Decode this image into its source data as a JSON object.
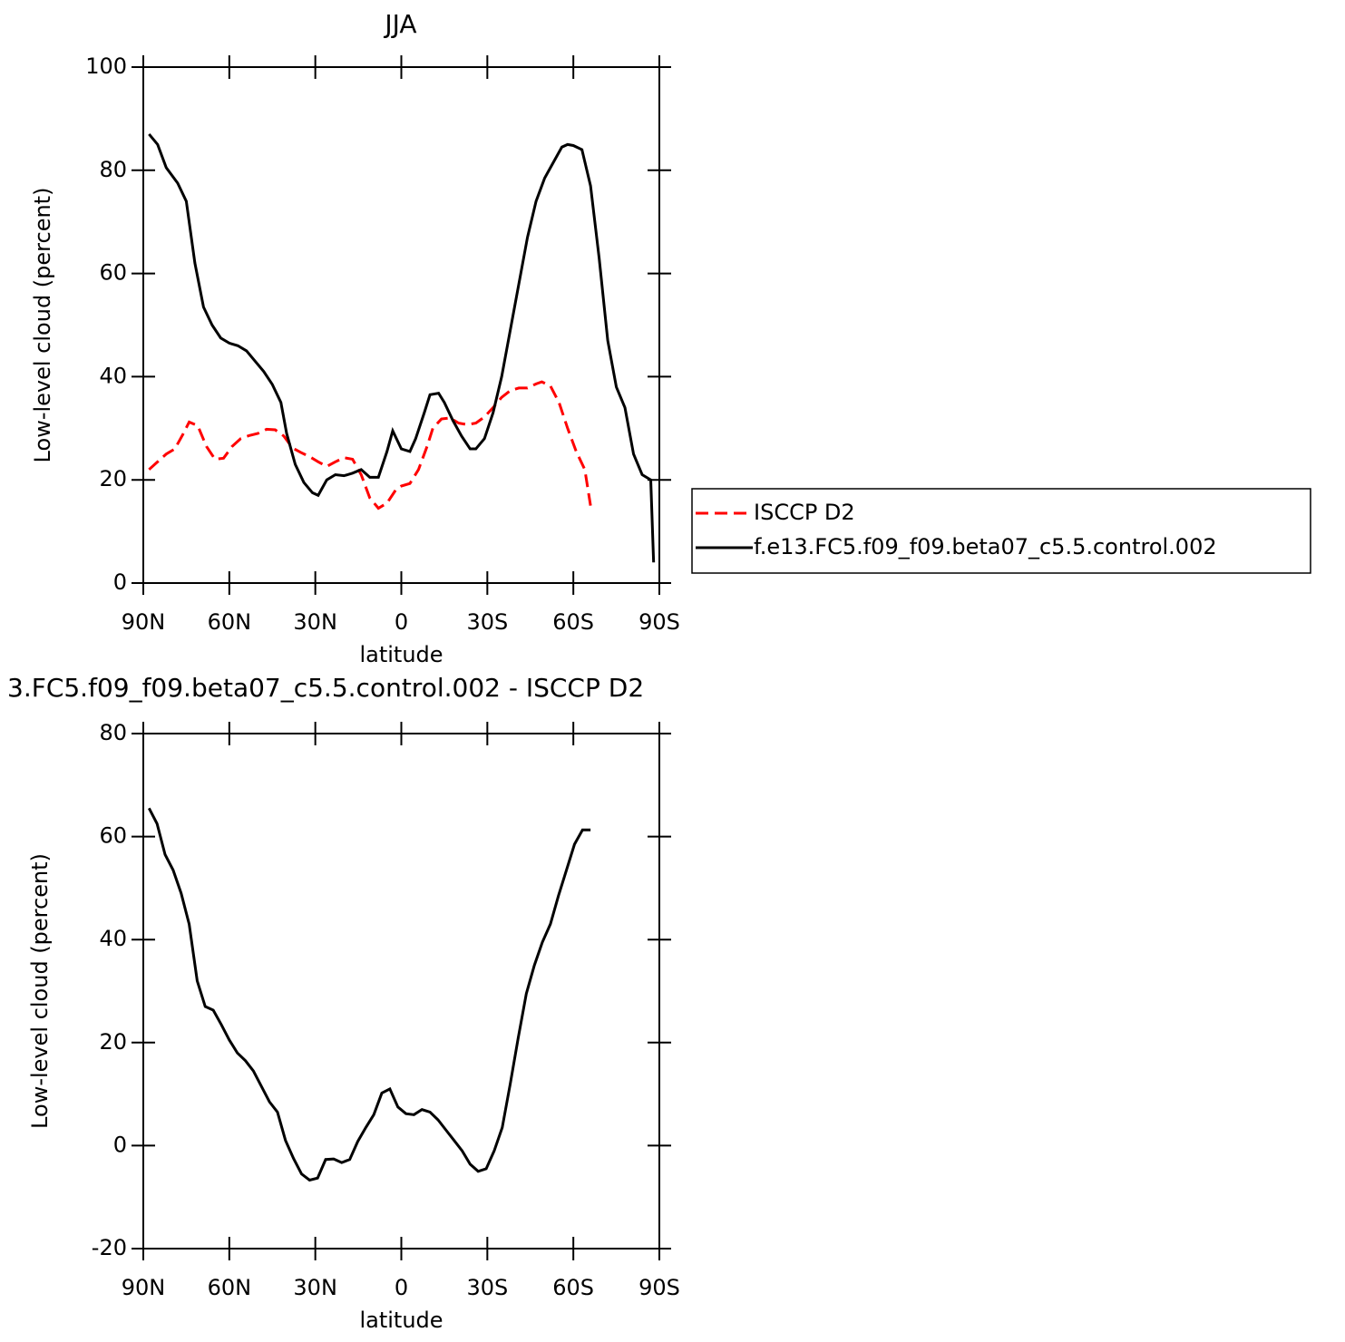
{
  "chart_data": [
    {
      "type": "line",
      "title": "JJA",
      "xlabel": "latitude",
      "ylabel": "Low-level cloud (percent)",
      "xlim": [
        90,
        -90
      ],
      "xticks": [
        {
          "value": 90,
          "label": "90N"
        },
        {
          "value": 60,
          "label": "60N"
        },
        {
          "value": 30,
          "label": "30N"
        },
        0,
        {
          "value": -30,
          "label": "30S"
        },
        {
          "value": -60,
          "label": "60S"
        },
        {
          "value": -90,
          "label": "90S"
        }
      ],
      "ylim": [
        0,
        100
      ],
      "yticks": [
        0,
        20,
        40,
        60,
        80,
        100
      ],
      "legend": "right",
      "series": [
        {
          "name": "ISCCP D2",
          "color": "#ff0000",
          "line_style": "dashed",
          "x": [
            88,
            85,
            82,
            79,
            76,
            74,
            71,
            68,
            65,
            62,
            59,
            56,
            53,
            50,
            47,
            44,
            41,
            38,
            35,
            32,
            29,
            26,
            23,
            20,
            17,
            14,
            11,
            8,
            5,
            2,
            0,
            -3,
            -6,
            -9,
            -11,
            -14,
            -17,
            -20,
            -23,
            -26,
            -29,
            -32,
            -35,
            -38,
            -41,
            -44,
            -47,
            -49,
            -52,
            -55,
            -58,
            -61,
            -64,
            -66
          ],
          "values": [
            22,
            23.5,
            25,
            26,
            29,
            31.2,
            30.5,
            26.5,
            24,
            24.2,
            26.5,
            28,
            28.6,
            29,
            29.8,
            29.7,
            28.5,
            26.2,
            25.3,
            24.5,
            23.5,
            22.6,
            23.5,
            24.3,
            24,
            21,
            16.5,
            14.5,
            15.5,
            18,
            18.8,
            19.3,
            22,
            26.5,
            30,
            31.8,
            32,
            31,
            30.7,
            31,
            32.2,
            34,
            36,
            37.3,
            37.8,
            37.8,
            38.6,
            39,
            38.2,
            35,
            30,
            25.5,
            22,
            15
          ]
        },
        {
          "name": "f.e13.FC5.f09_f09.beta07_c5.5.control.002",
          "color": "#000000",
          "line_style": "solid",
          "x": [
            88,
            85,
            82,
            78,
            75,
            72,
            69,
            66,
            63,
            60,
            57,
            54,
            51,
            48,
            45,
            42,
            40,
            37,
            34,
            31,
            29,
            26,
            23,
            20,
            17,
            14,
            11,
            8,
            5,
            3,
            0,
            -3,
            -5,
            -8,
            -10,
            -13,
            -15,
            -18,
            -21,
            -24,
            -26,
            -29,
            -32,
            -35,
            -38,
            -41,
            -44,
            -47,
            -50,
            -53,
            -56,
            -58,
            -60,
            -63,
            -66,
            -69,
            -72,
            -75,
            -78,
            -81,
            -84,
            -87,
            -88
          ],
          "values": [
            87,
            85,
            80.5,
            77.5,
            74,
            62,
            53.5,
            50,
            47.5,
            46.5,
            46,
            45,
            43,
            41,
            38.5,
            35,
            29,
            23,
            19.5,
            17.5,
            17,
            20,
            21,
            20.8,
            21.3,
            22,
            20.5,
            20.5,
            25.5,
            29.5,
            26,
            25.5,
            28,
            33,
            36.5,
            36.8,
            35,
            31.5,
            28.5,
            26,
            26,
            28,
            33,
            40,
            49,
            58,
            67,
            74,
            78.5,
            81.5,
            84.5,
            85,
            84.8,
            84,
            77,
            63,
            47,
            38,
            34,
            25,
            21,
            20,
            4
          ]
        }
      ]
    },
    {
      "type": "line",
      "title": "3.FC5.f09_f09.beta07_c5.5.control.002 - ISCCP D2",
      "xlabel": "latitude",
      "ylabel": "Low-level cloud (percent)",
      "xlim": [
        90,
        -90
      ],
      "xticks": [
        {
          "value": 90,
          "label": "90N"
        },
        {
          "value": 60,
          "label": "60N"
        },
        {
          "value": 30,
          "label": "30N"
        },
        0,
        {
          "value": -30,
          "label": "30S"
        },
        {
          "value": -60,
          "label": "60S"
        },
        {
          "value": -90,
          "label": "90S"
        }
      ],
      "ylim": [
        -20,
        80
      ],
      "yticks": [
        -20,
        0,
        20,
        40,
        60,
        80
      ],
      "series": [
        {
          "color": "#000000",
          "line_style": "solid",
          "x": [
            88,
            85.2,
            82.4,
            79.6,
            76.8,
            74,
            71.2,
            68.4,
            65.6,
            62.8,
            60,
            57.2,
            54.4,
            51.6,
            48.8,
            46,
            43.2,
            40.4,
            37.6,
            34.8,
            32,
            29.2,
            26.4,
            23.6,
            20.8,
            18,
            15.2,
            12.4,
            9.6,
            6.8,
            4,
            1.2,
            -1.6,
            -4.4,
            -7.2,
            -10,
            -12.8,
            -15.6,
            -18.4,
            -21.2,
            -24,
            -26.8,
            -29.6,
            -32.4,
            -35.2,
            -38,
            -40.8,
            -43.6,
            -46.4,
            -49.2,
            -52,
            -54.8,
            -57.6,
            -60.4,
            -63.2,
            -66
          ],
          "values": [
            65.5,
            62.5,
            56.5,
            53.5,
            49,
            43,
            32,
            27,
            26.3,
            23.5,
            20.5,
            18,
            16.5,
            14.5,
            11.5,
            8.5,
            6.5,
            1,
            -2.5,
            -5.5,
            -6.7,
            -6.3,
            -2.7,
            -2.6,
            -3.3,
            -2.7,
            0.8,
            3.5,
            6,
            10.2,
            11,
            7.5,
            6.2,
            6,
            7,
            6.5,
            5,
            3,
            1,
            -1,
            -3.6,
            -5,
            -4.5,
            -1,
            3.5,
            12,
            21,
            29.5,
            35,
            39.5,
            43,
            48.5,
            53.5,
            58.5,
            61.3,
            61.3
          ]
        }
      ]
    }
  ]
}
